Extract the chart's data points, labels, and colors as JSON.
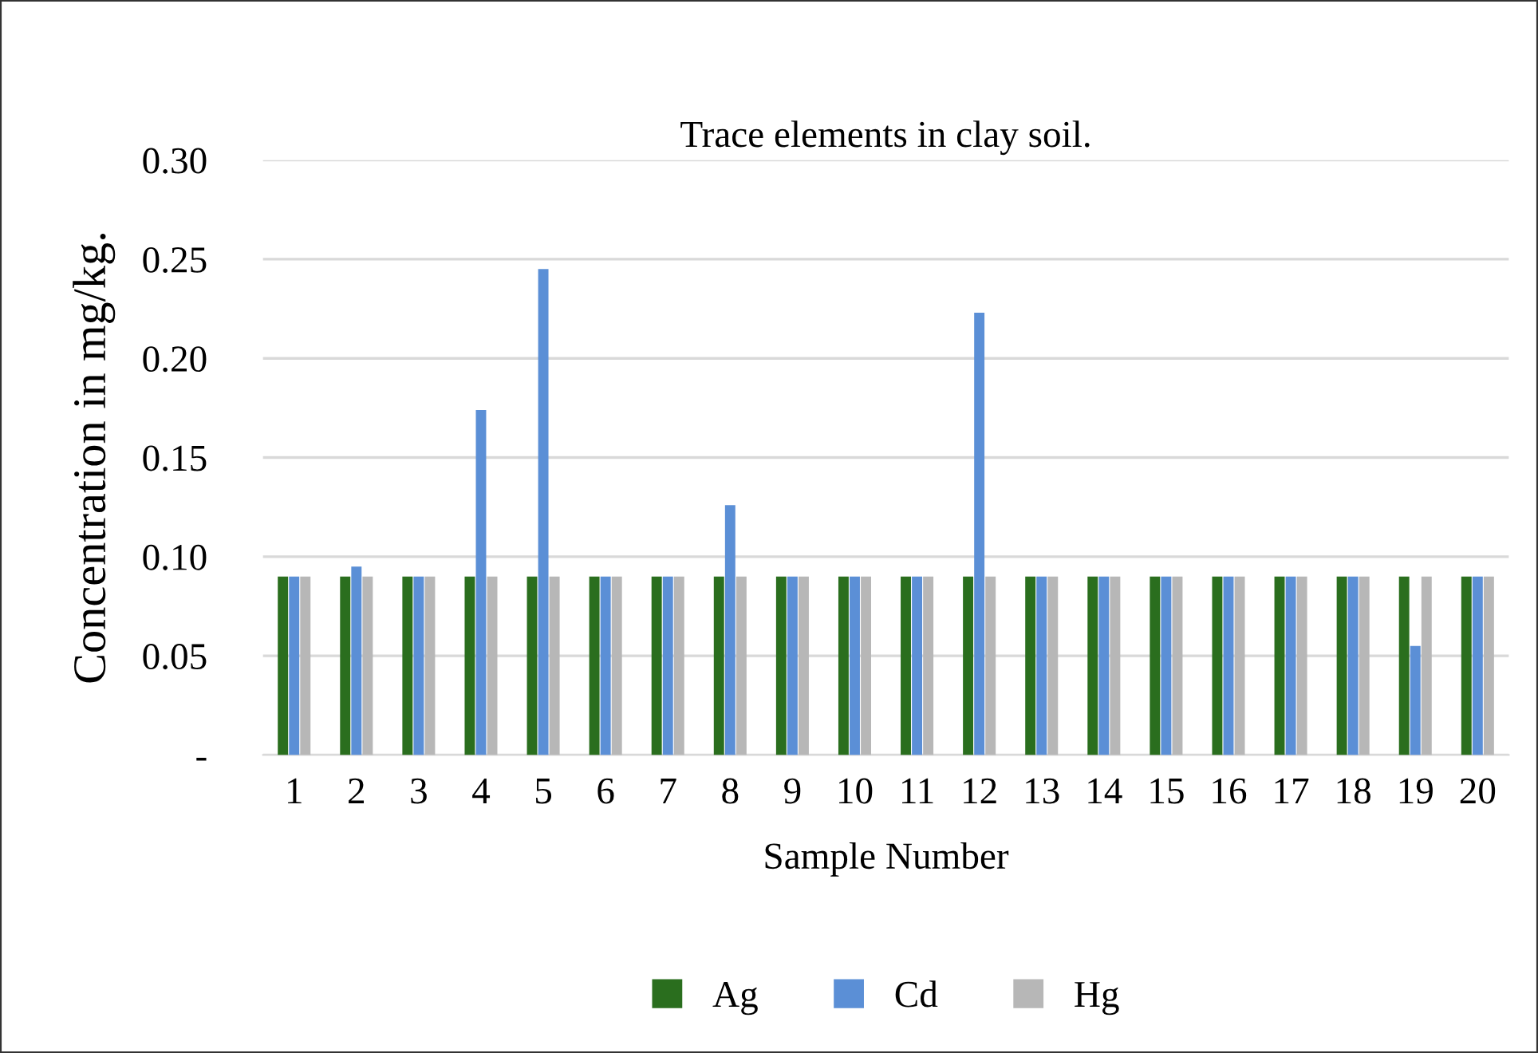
{
  "chart_data": {
    "type": "bar",
    "title": "Trace elements in clay soil.",
    "xlabel": "Sample Number",
    "ylabel": "Concentration in mg/kg.",
    "categories": [
      "1",
      "2",
      "3",
      "4",
      "5",
      "6",
      "7",
      "8",
      "9",
      "10",
      "11",
      "12",
      "13",
      "14",
      "15",
      "16",
      "17",
      "18",
      "19",
      "20"
    ],
    "series": [
      {
        "name": "Ag",
        "color": "#2a6e1e",
        "values": [
          0.09,
          0.09,
          0.09,
          0.09,
          0.09,
          0.09,
          0.09,
          0.09,
          0.09,
          0.09,
          0.09,
          0.09,
          0.09,
          0.09,
          0.09,
          0.09,
          0.09,
          0.09,
          0.09,
          0.09
        ]
      },
      {
        "name": "Cd",
        "color": "#5b8fd6",
        "values": [
          0.09,
          0.095,
          0.09,
          0.174,
          0.245,
          0.09,
          0.09,
          0.126,
          0.09,
          0.09,
          0.09,
          0.223,
          0.09,
          0.09,
          0.09,
          0.09,
          0.09,
          0.09,
          0.055,
          0.09
        ]
      },
      {
        "name": "Hg",
        "color": "#b7b7b7",
        "values": [
          0.09,
          0.09,
          0.09,
          0.09,
          0.09,
          0.09,
          0.09,
          0.09,
          0.09,
          0.09,
          0.09,
          0.09,
          0.09,
          0.09,
          0.09,
          0.09,
          0.09,
          0.09,
          0.09,
          0.09
        ]
      }
    ],
    "ylim": [
      0,
      0.3
    ],
    "yticks": [
      {
        "value": 0,
        "label": "-"
      },
      {
        "value": 0.05,
        "label": "0.05"
      },
      {
        "value": 0.1,
        "label": "0.10"
      },
      {
        "value": 0.15,
        "label": "0.15"
      },
      {
        "value": 0.2,
        "label": "0.20"
      },
      {
        "value": 0.25,
        "label": "0.25"
      },
      {
        "value": 0.3,
        "label": "0.30"
      }
    ],
    "grid": "y",
    "legend": "bottom"
  }
}
